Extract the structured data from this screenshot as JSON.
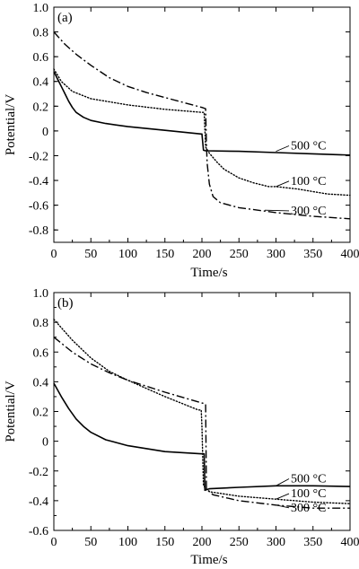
{
  "chart_data": [
    {
      "type": "line",
      "panel_label": "(a)",
      "xlabel": "Time/s",
      "ylabel": "Potential/V",
      "xlim": [
        0,
        400
      ],
      "ylim": [
        -0.9,
        1.0
      ],
      "x_ticks": [
        0,
        50,
        100,
        150,
        200,
        250,
        300,
        350,
        400
      ],
      "y_ticks": [
        -0.8,
        -0.6,
        -0.4,
        -0.2,
        0,
        0.2,
        0.4,
        0.6,
        0.8,
        1.0
      ],
      "y_tick_labels": [
        "-0.8",
        "-0.6",
        "-0.4",
        "-0.2",
        "0",
        "0.2",
        "0.4",
        "0.6",
        "0.8",
        "1.0"
      ],
      "grid": false,
      "series": [
        {
          "name": "500 °C",
          "style": "solid",
          "points": [
            [
              0,
              0.48
            ],
            [
              5,
              0.42
            ],
            [
              10,
              0.36
            ],
            [
              15,
              0.3
            ],
            [
              20,
              0.24
            ],
            [
              25,
              0.19
            ],
            [
              30,
              0.15
            ],
            [
              40,
              0.11
            ],
            [
              50,
              0.085
            ],
            [
              70,
              0.06
            ],
            [
              100,
              0.035
            ],
            [
              150,
              0.005
            ],
            [
              199,
              -0.025
            ],
            [
              200,
              -0.025
            ],
            [
              202,
              -0.155
            ],
            [
              205,
              -0.16
            ],
            [
              250,
              -0.165
            ],
            [
              300,
              -0.175
            ],
            [
              350,
              -0.185
            ],
            [
              400,
              -0.195
            ]
          ],
          "label_point": [
            300,
            -0.165
          ]
        },
        {
          "name": "100 °C",
          "style": "dotted",
          "points": [
            [
              0,
              0.5
            ],
            [
              10,
              0.4
            ],
            [
              25,
              0.32
            ],
            [
              50,
              0.26
            ],
            [
              100,
              0.21
            ],
            [
              150,
              0.175
            ],
            [
              200,
              0.15
            ],
            [
              203,
              0.15
            ],
            [
              205,
              -0.13
            ],
            [
              210,
              -0.18
            ],
            [
              220,
              -0.25
            ],
            [
              230,
              -0.31
            ],
            [
              250,
              -0.38
            ],
            [
              270,
              -0.42
            ],
            [
              290,
              -0.45
            ],
            [
              300,
              -0.45
            ],
            [
              330,
              -0.47
            ],
            [
              350,
              -0.49
            ],
            [
              370,
              -0.51
            ],
            [
              400,
              -0.52
            ]
          ],
          "label_point": [
            300,
            -0.45
          ]
        },
        {
          "name": "300 °C",
          "style": "dash-dot",
          "points": [
            [
              0,
              0.8
            ],
            [
              15,
              0.7
            ],
            [
              30,
              0.62
            ],
            [
              50,
              0.53
            ],
            [
              75,
              0.43
            ],
            [
              100,
              0.36
            ],
            [
              125,
              0.31
            ],
            [
              150,
              0.27
            ],
            [
              175,
              0.23
            ],
            [
              200,
              0.19
            ],
            [
              205,
              0.18
            ],
            [
              206,
              -0.1
            ],
            [
              207,
              -0.26
            ],
            [
              210,
              -0.43
            ],
            [
              215,
              -0.53
            ],
            [
              225,
              -0.58
            ],
            [
              250,
              -0.62
            ],
            [
              300,
              -0.66
            ],
            [
              350,
              -0.69
            ],
            [
              400,
              -0.71
            ]
          ],
          "label_point": [
            285,
            -0.64
          ]
        }
      ],
      "annotations": [
        {
          "text": "500 °C",
          "series": "500 °C",
          "x": 320,
          "y": -0.135
        },
        {
          "text": "100 °C",
          "series": "100 °C",
          "x": 320,
          "y": -0.42
        },
        {
          "text": "300 °C",
          "series": "300 °C",
          "x": 320,
          "y": -0.66
        }
      ]
    },
    {
      "type": "line",
      "panel_label": "(b)",
      "xlabel": "Time/s",
      "ylabel": "Potential/V",
      "xlim": [
        0,
        400
      ],
      "ylim": [
        -0.6,
        1.0
      ],
      "x_ticks": [
        0,
        50,
        100,
        150,
        200,
        250,
        300,
        350,
        400
      ],
      "y_ticks": [
        -0.6,
        -0.4,
        -0.2,
        0,
        0.2,
        0.4,
        0.6,
        0.8,
        1.0
      ],
      "y_tick_labels": [
        "-0.6",
        "-0.4",
        "-0.2",
        "0",
        "0.2",
        "0.4",
        "0.6",
        "0.8",
        "1.0"
      ],
      "grid": false,
      "series": [
        {
          "name": "500 °C",
          "style": "solid",
          "points": [
            [
              0,
              0.39
            ],
            [
              10,
              0.3
            ],
            [
              20,
              0.22
            ],
            [
              30,
              0.15
            ],
            [
              40,
              0.1
            ],
            [
              50,
              0.06
            ],
            [
              70,
              0.01
            ],
            [
              100,
              -0.03
            ],
            [
              150,
              -0.07
            ],
            [
              200,
              -0.085
            ],
            [
              203,
              -0.085
            ],
            [
              204,
              -0.33
            ],
            [
              210,
              -0.32
            ],
            [
              250,
              -0.31
            ],
            [
              300,
              -0.3
            ],
            [
              350,
              -0.3
            ],
            [
              400,
              -0.305
            ]
          ],
          "label_point": [
            300,
            -0.3
          ]
        },
        {
          "name": "100 °C",
          "style": "dotted",
          "points": [
            [
              0,
              0.82
            ],
            [
              25,
              0.68
            ],
            [
              50,
              0.56
            ],
            [
              75,
              0.47
            ],
            [
              100,
              0.41
            ],
            [
              150,
              0.3
            ],
            [
              195,
              0.21
            ],
            [
              199,
              0.21
            ],
            [
              200,
              0.1
            ],
            [
              202,
              -0.3
            ],
            [
              210,
              -0.34
            ],
            [
              250,
              -0.37
            ],
            [
              300,
              -0.39
            ],
            [
              350,
              -0.41
            ],
            [
              400,
              -0.42
            ]
          ],
          "label_point": [
            300,
            -0.39
          ]
        },
        {
          "name": "300 °C",
          "style": "dash-dot",
          "points": [
            [
              0,
              0.7
            ],
            [
              25,
              0.6
            ],
            [
              50,
              0.52
            ],
            [
              75,
              0.46
            ],
            [
              100,
              0.41
            ],
            [
              150,
              0.33
            ],
            [
              205,
              0.25
            ],
            [
              206,
              -0.32
            ],
            [
              215,
              -0.36
            ],
            [
              250,
              -0.4
            ],
            [
              300,
              -0.43
            ],
            [
              350,
              -0.45
            ],
            [
              400,
              -0.45
            ]
          ],
          "label_point": [
            300,
            -0.43
          ]
        }
      ],
      "annotations": [
        {
          "text": "500 °C",
          "series": "500 °C",
          "x": 320,
          "y": -0.265
        },
        {
          "text": "100 °C",
          "series": "100 °C",
          "x": 320,
          "y": -0.365
        },
        {
          "text": "300 °C",
          "series": "300 °C",
          "x": 320,
          "y": -0.46
        }
      ]
    }
  ]
}
